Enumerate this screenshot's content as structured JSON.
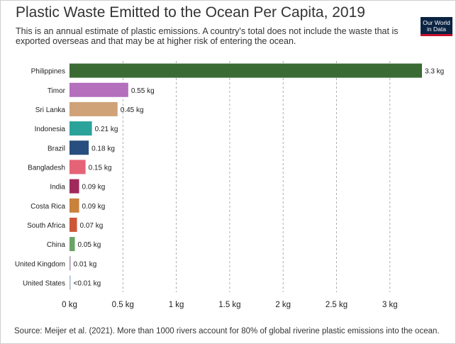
{
  "header": {
    "title": "Plastic Waste Emitted to the Ocean Per Capita, 2019",
    "subtitle": "This is an annual estimate of plastic emissions. A country's total does not include the waste that is exported overseas and that may be at higher risk of entering the ocean.",
    "logo_line1": "Our World",
    "logo_line2": "in Data"
  },
  "footer": {
    "source": "Source: Meijer et al. (2021). More than 1000 rivers account for 80% of global riverine plastic emissions into the ocean."
  },
  "chart_data": {
    "type": "bar",
    "orientation": "horizontal",
    "title": "Plastic Waste Emitted to the Ocean Per Capita, 2019",
    "xlabel": "",
    "ylabel": "",
    "xlim": [
      0,
      3.3
    ],
    "grid": true,
    "tick_values": [
      0,
      0.5,
      1,
      1.5,
      2,
      2.5,
      3
    ],
    "tick_labels": [
      "0 kg",
      "0.5 kg",
      "1 kg",
      "1.5 kg",
      "2 kg",
      "2.5 kg",
      "3 kg"
    ],
    "categories": [
      "Philippines",
      "Timor",
      "Sri Lanka",
      "Indonesia",
      "Brazil",
      "Bangladesh",
      "India",
      "Costa Rica",
      "South Africa",
      "China",
      "United Kingdom",
      "United States"
    ],
    "values": [
      3.3,
      0.55,
      0.45,
      0.21,
      0.18,
      0.15,
      0.09,
      0.09,
      0.07,
      0.05,
      0.01,
      0.005
    ],
    "value_labels": [
      "3.3 kg",
      "0.55 kg",
      "0.45 kg",
      "0.21 kg",
      "0.18 kg",
      "0.15 kg",
      "0.09 kg",
      "0.09 kg",
      "0.07 kg",
      "0.05 kg",
      "0.01 kg",
      "<0.01 kg"
    ],
    "colors": [
      "#3b6b34",
      "#b46fbd",
      "#cfa278",
      "#2ba39b",
      "#284d7f",
      "#e56277",
      "#a1285b",
      "#c9823c",
      "#cc5838",
      "#6aa366",
      "#b490b8",
      "#a7b9cf"
    ]
  }
}
